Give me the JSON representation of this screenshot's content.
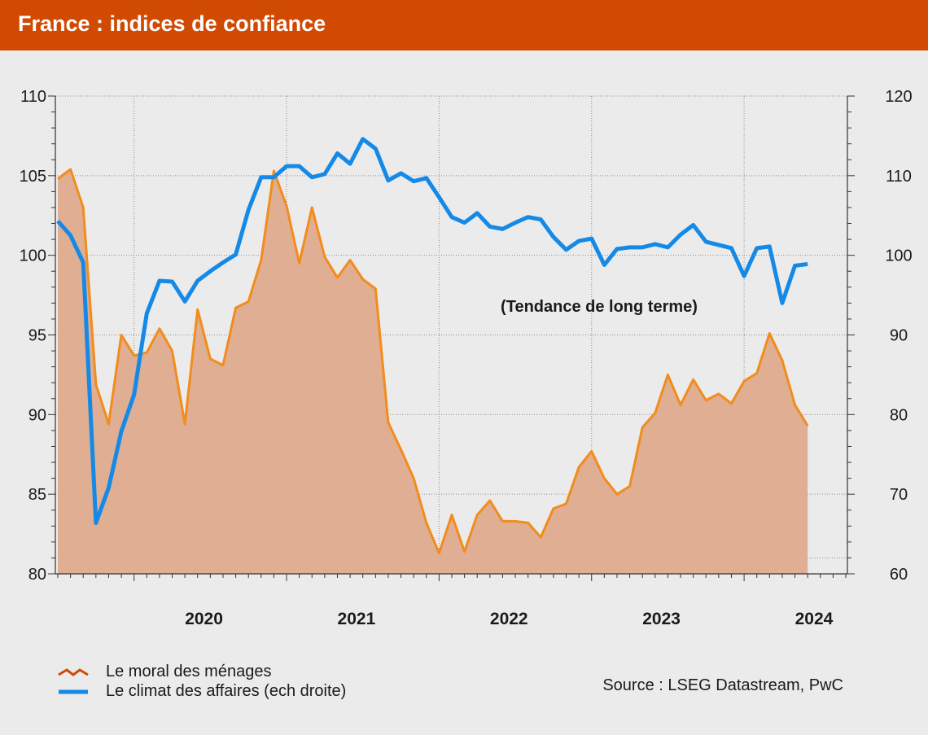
{
  "header": {
    "title": "France : indices de confiance"
  },
  "source": "Source : LSEG Datastream, PwC",
  "annotation": "(Tendance de long terme)",
  "colors": {
    "header": "#d04a02",
    "households_line": "#f28c1c",
    "households_fill": "#dfae93",
    "business_line": "#1589e6",
    "background": "#ebebeb"
  },
  "chart_data": {
    "type": "line",
    "x_axis": {
      "tick_labels": [
        "2020",
        "2021",
        "2022",
        "2023",
        "2024"
      ],
      "range": [
        "2019-07",
        "2024-09"
      ]
    },
    "y_axis_left": {
      "range": [
        80,
        110
      ],
      "tick_labels": [
        "110",
        "105",
        "100",
        "95",
        "90",
        "85",
        "80"
      ]
    },
    "y_axis_right": {
      "range": [
        60,
        120
      ],
      "tick_labels": [
        "120",
        "110",
        "100",
        "90",
        "80",
        "70",
        "60"
      ]
    },
    "grid": true,
    "legend_position": "bottom-left",
    "series": [
      {
        "name": "Le moral des ménages",
        "axis": "left",
        "style": "area",
        "points": [
          [
            "2019-07",
            104.8
          ],
          [
            "2019-08",
            105.4
          ],
          [
            "2019-09",
            103.0
          ],
          [
            "2019-10",
            91.9
          ],
          [
            "2019-11",
            89.4
          ],
          [
            "2019-12",
            95.0
          ],
          [
            "2020-01",
            93.7
          ],
          [
            "2020-02",
            93.9
          ],
          [
            "2020-03",
            95.4
          ],
          [
            "2020-04",
            94.0
          ],
          [
            "2020-05",
            89.4
          ],
          [
            "2020-06",
            96.6
          ],
          [
            "2020-07",
            93.5
          ],
          [
            "2020-08",
            93.1
          ],
          [
            "2020-09",
            96.7
          ],
          [
            "2020-10",
            97.1
          ],
          [
            "2020-11",
            99.7
          ],
          [
            "2020-12",
            105.3
          ],
          [
            "2021-01",
            103.1
          ],
          [
            "2021-02",
            99.5
          ],
          [
            "2021-03",
            103.0
          ],
          [
            "2021-04",
            99.9
          ],
          [
            "2021-05",
            98.6
          ],
          [
            "2021-06",
            99.7
          ],
          [
            "2021-07",
            98.5
          ],
          [
            "2021-08",
            97.9
          ],
          [
            "2021-09",
            89.5
          ],
          [
            "2021-10",
            87.8
          ],
          [
            "2021-11",
            86.0
          ],
          [
            "2021-12",
            83.2
          ],
          [
            "2022-01",
            81.3
          ],
          [
            "2022-02",
            83.7
          ],
          [
            "2022-03",
            81.4
          ],
          [
            "2022-04",
            83.7
          ],
          [
            "2022-05",
            84.6
          ],
          [
            "2022-06",
            83.3
          ],
          [
            "2022-07",
            83.3
          ],
          [
            "2022-08",
            83.2
          ],
          [
            "2022-09",
            82.3
          ],
          [
            "2022-10",
            84.1
          ],
          [
            "2022-11",
            84.4
          ],
          [
            "2022-12",
            86.7
          ],
          [
            "2023-01",
            87.7
          ],
          [
            "2023-02",
            86.0
          ],
          [
            "2023-03",
            85.0
          ],
          [
            "2023-04",
            85.5
          ],
          [
            "2023-05",
            89.2
          ],
          [
            "2023-06",
            90.1
          ],
          [
            "2023-07",
            92.5
          ],
          [
            "2023-08",
            90.6
          ],
          [
            "2023-09",
            92.2
          ],
          [
            "2023-10",
            90.9
          ],
          [
            "2023-11",
            91.3
          ],
          [
            "2023-12",
            90.7
          ],
          [
            "2024-01",
            92.1
          ],
          [
            "2024-02",
            92.6
          ],
          [
            "2024-03",
            95.1
          ],
          [
            "2024-04",
            93.4
          ],
          [
            "2024-05",
            90.6
          ],
          [
            "2024-06",
            89.3
          ]
        ]
      },
      {
        "name": "Le climat des affaires (ech droite)",
        "axis": "right",
        "style": "line",
        "points": [
          [
            "2019-07",
            104.3
          ],
          [
            "2019-08",
            102.5
          ],
          [
            "2019-09",
            99.1
          ],
          [
            "2019-10",
            66.4
          ],
          [
            "2019-11",
            70.8
          ],
          [
            "2019-12",
            77.9
          ],
          [
            "2020-01",
            82.5
          ],
          [
            "2020-02",
            92.7
          ],
          [
            "2020-03",
            96.8
          ],
          [
            "2020-04",
            96.7
          ],
          [
            "2020-05",
            94.2
          ],
          [
            "2020-06",
            96.8
          ],
          [
            "2020-07",
            98.0
          ],
          [
            "2020-08",
            99.1
          ],
          [
            "2020-09",
            100.1
          ],
          [
            "2020-10",
            105.7
          ],
          [
            "2020-11",
            109.8
          ],
          [
            "2020-12",
            109.8
          ],
          [
            "2021-01",
            111.2
          ],
          [
            "2021-02",
            111.2
          ],
          [
            "2021-03",
            109.8
          ],
          [
            "2021-04",
            110.2
          ],
          [
            "2021-05",
            112.8
          ],
          [
            "2021-06",
            111.5
          ],
          [
            "2021-07",
            114.6
          ],
          [
            "2021-08",
            113.4
          ],
          [
            "2021-09",
            109.4
          ],
          [
            "2021-10",
            110.3
          ],
          [
            "2021-11",
            109.3
          ],
          [
            "2021-12",
            109.7
          ],
          [
            "2022-01",
            107.3
          ],
          [
            "2022-02",
            104.8
          ],
          [
            "2022-03",
            104.1
          ],
          [
            "2022-04",
            105.3
          ],
          [
            "2022-05",
            103.6
          ],
          [
            "2022-06",
            103.3
          ],
          [
            "2022-07",
            104.1
          ],
          [
            "2022-08",
            104.8
          ],
          [
            "2022-09",
            104.5
          ],
          [
            "2022-10",
            102.3
          ],
          [
            "2022-11",
            100.7
          ],
          [
            "2022-12",
            101.8
          ],
          [
            "2023-01",
            102.1
          ],
          [
            "2023-02",
            98.8
          ],
          [
            "2023-03",
            100.8
          ],
          [
            "2023-04",
            101.0
          ],
          [
            "2023-05",
            101.0
          ],
          [
            "2023-06",
            101.4
          ],
          [
            "2023-07",
            101.0
          ],
          [
            "2023-08",
            102.6
          ],
          [
            "2023-09",
            103.8
          ],
          [
            "2023-10",
            101.7
          ],
          [
            "2023-11",
            101.3
          ],
          [
            "2023-12",
            100.9
          ],
          [
            "2024-01",
            97.4
          ],
          [
            "2024-02",
            100.9
          ],
          [
            "2024-03",
            101.1
          ],
          [
            "2024-04",
            94.0
          ],
          [
            "2024-05",
            98.7
          ],
          [
            "2024-06",
            98.9
          ]
        ]
      }
    ]
  }
}
